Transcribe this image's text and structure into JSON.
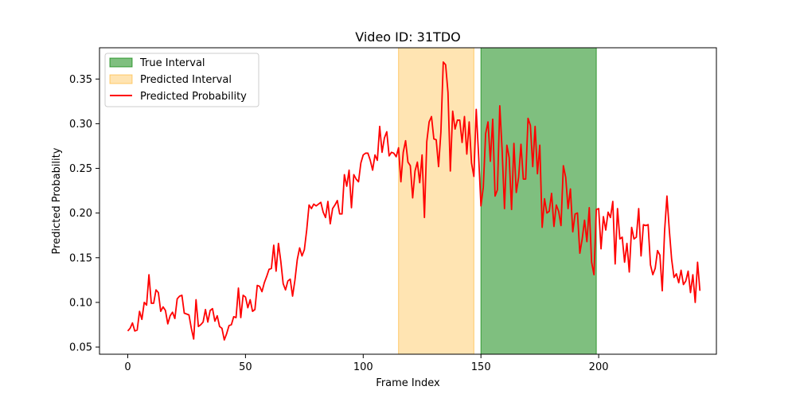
{
  "chart_data": {
    "type": "line",
    "title": "Video ID: 31TDO",
    "xlabel": "Frame Index",
    "ylabel": "Predicted Probability",
    "xlim": [
      -12,
      250
    ],
    "ylim": [
      0.042,
      0.385
    ],
    "xticks": [
      0,
      50,
      100,
      150,
      200
    ],
    "yticks": [
      0.05,
      0.1,
      0.15,
      0.2,
      0.25,
      0.3,
      0.35
    ],
    "grid": false,
    "legend": {
      "position": "upper-left",
      "entries": [
        {
          "label": "True Interval",
          "kind": "patch",
          "color": "#008000",
          "opacity": 0.5
        },
        {
          "label": "Predicted Interval",
          "kind": "patch",
          "color": "#ffa500",
          "opacity": 0.3
        },
        {
          "label": "Predicted Probability",
          "kind": "line",
          "color": "#ff0000"
        }
      ]
    },
    "intervals": [
      {
        "name": "Predicted Interval",
        "x_start": 115,
        "x_end": 147,
        "color": "#ffa500",
        "opacity": 0.3
      },
      {
        "name": "True Interval",
        "x_start": 150,
        "x_end": 199,
        "color": "#008000",
        "opacity": 0.5
      }
    ],
    "series": [
      {
        "name": "Predicted Probability",
        "color": "#ff0000",
        "x_start": 0,
        "values": [
          0.068,
          0.071,
          0.077,
          0.068,
          0.069,
          0.09,
          0.081,
          0.1,
          0.097,
          0.131,
          0.099,
          0.099,
          0.114,
          0.111,
          0.09,
          0.095,
          0.091,
          0.076,
          0.085,
          0.089,
          0.082,
          0.104,
          0.107,
          0.108,
          0.088,
          0.087,
          0.086,
          0.071,
          0.059,
          0.103,
          0.073,
          0.075,
          0.078,
          0.092,
          0.078,
          0.091,
          0.093,
          0.079,
          0.085,
          0.073,
          0.071,
          0.058,
          0.065,
          0.074,
          0.075,
          0.084,
          0.083,
          0.116,
          0.083,
          0.108,
          0.106,
          0.094,
          0.103,
          0.09,
          0.092,
          0.119,
          0.118,
          0.112,
          0.122,
          0.129,
          0.137,
          0.138,
          0.164,
          0.135,
          0.166,
          0.146,
          0.121,
          0.114,
          0.124,
          0.126,
          0.107,
          0.125,
          0.148,
          0.161,
          0.152,
          0.159,
          0.181,
          0.209,
          0.205,
          0.21,
          0.208,
          0.21,
          0.212,
          0.201,
          0.195,
          0.213,
          0.188,
          0.205,
          0.209,
          0.214,
          0.199,
          0.199,
          0.243,
          0.23,
          0.248,
          0.206,
          0.243,
          0.238,
          0.235,
          0.256,
          0.265,
          0.267,
          0.267,
          0.259,
          0.248,
          0.265,
          0.259,
          0.297,
          0.268,
          0.284,
          0.291,
          0.264,
          0.268,
          0.267,
          0.263,
          0.273,
          0.235,
          0.268,
          0.281,
          0.257,
          0.253,
          0.217,
          0.247,
          0.257,
          0.234,
          0.265,
          0.195,
          0.28,
          0.302,
          0.308,
          0.283,
          0.282,
          0.252,
          0.291,
          0.369,
          0.366,
          0.335,
          0.247,
          0.314,
          0.294,
          0.304,
          0.304,
          0.279,
          0.308,
          0.266,
          0.302,
          0.256,
          0.241,
          0.316,
          0.265,
          0.208,
          0.229,
          0.289,
          0.302,
          0.258,
          0.305,
          0.219,
          0.226,
          0.32,
          0.27,
          0.205,
          0.276,
          0.262,
          0.204,
          0.278,
          0.223,
          0.24,
          0.277,
          0.238,
          0.238,
          0.306,
          0.298,
          0.252,
          0.297,
          0.244,
          0.276,
          0.184,
          0.216,
          0.2,
          0.202,
          0.222,
          0.185,
          0.209,
          0.202,
          0.186,
          0.253,
          0.24,
          0.205,
          0.227,
          0.179,
          0.199,
          0.2,
          0.155,
          0.171,
          0.192,
          0.168,
          0.206,
          0.145,
          0.131,
          0.204,
          0.205,
          0.16,
          0.196,
          0.181,
          0.201,
          0.195,
          0.213,
          0.143,
          0.205,
          0.171,
          0.173,
          0.145,
          0.166,
          0.134,
          0.184,
          0.171,
          0.173,
          0.205,
          0.152,
          0.187,
          0.186,
          0.187,
          0.142,
          0.131,
          0.138,
          0.158,
          0.153,
          0.113,
          0.18,
          0.219,
          0.181,
          0.148,
          0.128,
          0.132,
          0.122,
          0.136,
          0.12,
          0.124,
          0.135,
          0.111,
          0.131,
          0.1,
          0.145,
          0.113
        ]
      }
    ]
  }
}
